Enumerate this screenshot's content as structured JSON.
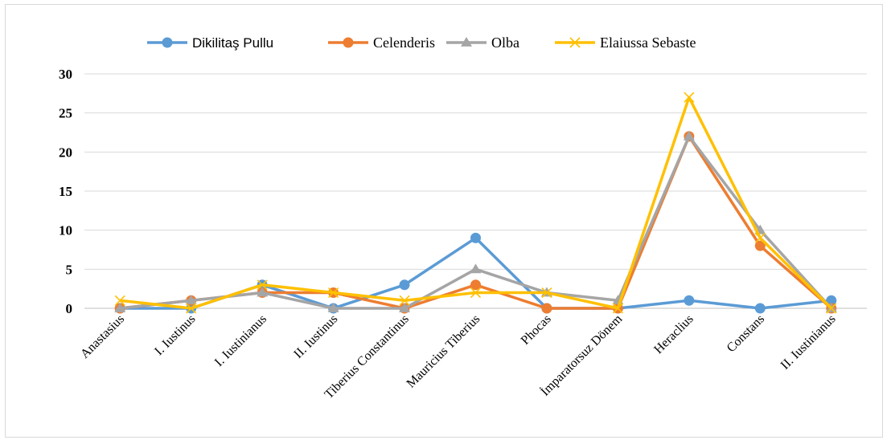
{
  "chart_data": {
    "type": "line",
    "categories": [
      "Anastasius",
      "I. Iustinus",
      "I. Iustinianus",
      "II. Iustinus",
      "Tiberius Constantinus",
      "Mauricius Tiberius",
      "Phocas",
      "İmparatorsuz Dönem",
      "Heraclius",
      "Constans",
      "II. Iustinianus"
    ],
    "series": [
      {
        "name": "Dikilitaş Pullu",
        "color": "#5b9bd5",
        "marker": "circle",
        "values": [
          0,
          0,
          3,
          0,
          3,
          9,
          0,
          0,
          1,
          0,
          1
        ]
      },
      {
        "name": "Celenderis",
        "color": "#ed7d31",
        "marker": "circle",
        "values": [
          0,
          1,
          2,
          2,
          0,
          3,
          0,
          0,
          22,
          8,
          0
        ]
      },
      {
        "name": "Olba",
        "color": "#a5a5a5",
        "marker": "triangle",
        "values": [
          0,
          1,
          2,
          0,
          0,
          5,
          2,
          1,
          22,
          10,
          0
        ]
      },
      {
        "name": "Elaiussa Sebaste",
        "color": "#ffc000",
        "marker": "x",
        "values": [
          1,
          0,
          3,
          2,
          1,
          2,
          2,
          0,
          27,
          9,
          0
        ]
      }
    ],
    "yticks": [
      "0",
      "5",
      "10",
      "15",
      "20",
      "25",
      "30"
    ],
    "ylim": [
      0,
      30
    ],
    "grid": true,
    "legend": "top"
  }
}
